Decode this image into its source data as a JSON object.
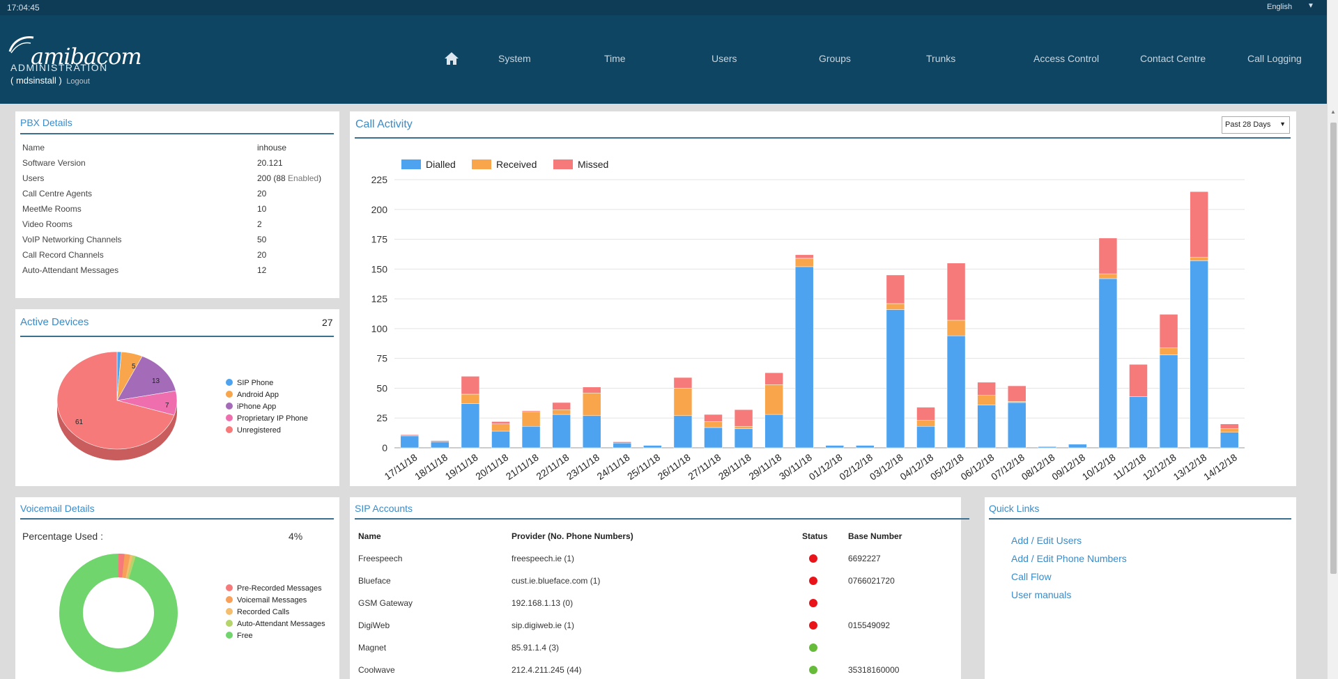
{
  "topbar": {
    "clock": "17:04:45",
    "language": "English"
  },
  "header": {
    "logo_text": "amibacom",
    "subtitle": "ADMINISTRATION",
    "user": "( mdsinstall )",
    "logout": "Logout",
    "nav": [
      "System",
      "Time",
      "Users",
      "Groups",
      "Trunks",
      "Access Control",
      "Contact Centre",
      "Call Logging"
    ]
  },
  "pbx": {
    "title": "PBX Details",
    "rows": [
      {
        "label": "Name",
        "value": "inhouse"
      },
      {
        "label": "Software Version",
        "value": "20.121"
      },
      {
        "label": "Users",
        "value": "200 (88 Enabled)"
      },
      {
        "label": "Call Centre Agents",
        "value": "20"
      },
      {
        "label": "MeetMe Rooms",
        "value": "10"
      },
      {
        "label": "Video Rooms",
        "value": "2"
      },
      {
        "label": "VoIP Networking Channels",
        "value": "50"
      },
      {
        "label": "Call Record Channels",
        "value": "20"
      },
      {
        "label": "Auto-Attendant Messages",
        "value": "12"
      }
    ]
  },
  "devices": {
    "title": "Active Devices",
    "count": "27",
    "legend": [
      {
        "label": "SIP Phone",
        "color": "#4da3f0"
      },
      {
        "label": "Android App",
        "color": "#f8a54b"
      },
      {
        "label": "iPhone App",
        "color": "#a46bb8"
      },
      {
        "label": "Proprietary IP Phone",
        "color": "#ef6fae"
      },
      {
        "label": "Unregistered",
        "color": "#f77a7a"
      }
    ],
    "slice_labels": [
      "5",
      "13",
      "7",
      "61"
    ]
  },
  "voicemail": {
    "title": "Voicemail Details",
    "pct_label": "Percentage Used :",
    "pct_value": "4%",
    "legend": [
      {
        "label": "Pre-Recorded Messages",
        "color": "#f77a7a"
      },
      {
        "label": "Voicemail Messages",
        "color": "#f8a05a"
      },
      {
        "label": "Recorded Calls",
        "color": "#f5bd6e"
      },
      {
        "label": "Auto-Attendant Messages",
        "color": "#b5d46b"
      },
      {
        "label": "Free",
        "color": "#6fd56c"
      }
    ]
  },
  "activity": {
    "title": "Call Activity",
    "range": "Past 28 Days"
  },
  "chart_data": {
    "type": "bar",
    "stacked": true,
    "categories": [
      "17/11/18",
      "18/11/18",
      "19/11/18",
      "20/11/18",
      "21/11/18",
      "22/11/18",
      "23/11/18",
      "24/11/18",
      "25/11/18",
      "26/11/18",
      "27/11/18",
      "28/11/18",
      "29/11/18",
      "30/11/18",
      "01/12/18",
      "02/12/18",
      "03/12/18",
      "04/12/18",
      "05/12/18",
      "06/12/18",
      "07/12/18",
      "08/12/18",
      "09/12/18",
      "10/12/18",
      "11/12/18",
      "12/12/18",
      "13/12/18",
      "14/12/18"
    ],
    "series": [
      {
        "name": "Dialled",
        "color": "#4da3f0",
        "values": [
          10,
          5,
          37,
          14,
          18,
          28,
          27,
          4,
          2,
          27,
          17,
          16,
          28,
          152,
          2,
          2,
          116,
          18,
          94,
          36,
          38,
          1,
          3,
          142,
          43,
          78,
          157,
          13
        ]
      },
      {
        "name": "Received",
        "color": "#f8a54b",
        "values": [
          0,
          0,
          8,
          6,
          12,
          4,
          19,
          0,
          0,
          23,
          5,
          2,
          25,
          7,
          0,
          0,
          5,
          5,
          13,
          8,
          1,
          0,
          0,
          4,
          0,
          6,
          3,
          3
        ]
      },
      {
        "name": "Missed",
        "color": "#f77a7a",
        "values": [
          1,
          1,
          15,
          2,
          1,
          6,
          5,
          1,
          0,
          9,
          6,
          14,
          10,
          3,
          0,
          0,
          24,
          11,
          48,
          11,
          13,
          0,
          0,
          30,
          27,
          28,
          55,
          4
        ]
      }
    ],
    "ylim": [
      0,
      225
    ],
    "yticks": [
      0,
      25,
      50,
      75,
      100,
      125,
      150,
      175,
      200,
      225
    ],
    "legend_position": "top-left",
    "grid": true
  },
  "sip": {
    "title": "SIP Accounts",
    "headers": [
      "Name",
      "Provider (No. Phone Numbers)",
      "Status",
      "Base Number"
    ],
    "rows": [
      {
        "name": "Freespeech",
        "provider": "freespeech.ie (1)",
        "status": "down",
        "base": "6692227"
      },
      {
        "name": "Blueface",
        "provider": "cust.ie.blueface.com (1)",
        "status": "down",
        "base": "0766021720"
      },
      {
        "name": "GSM Gateway",
        "provider": "192.168.1.13 (0)",
        "status": "down",
        "base": ""
      },
      {
        "name": "DigiWeb",
        "provider": "sip.digiweb.ie (1)",
        "status": "down",
        "base": "015549092"
      },
      {
        "name": "Magnet",
        "provider": "85.91.1.4 (3)",
        "status": "up",
        "base": ""
      },
      {
        "name": "Coolwave",
        "provider": "212.4.211.245 (44)",
        "status": "up",
        "base": "35318160000"
      }
    ],
    "status_colors": {
      "down": "#e8141a",
      "up": "#66bb3a"
    }
  },
  "quick": {
    "title": "Quick Links",
    "links": [
      "Add / Edit Users",
      "Add / Edit Phone Numbers",
      "Call Flow",
      "User manuals"
    ]
  }
}
